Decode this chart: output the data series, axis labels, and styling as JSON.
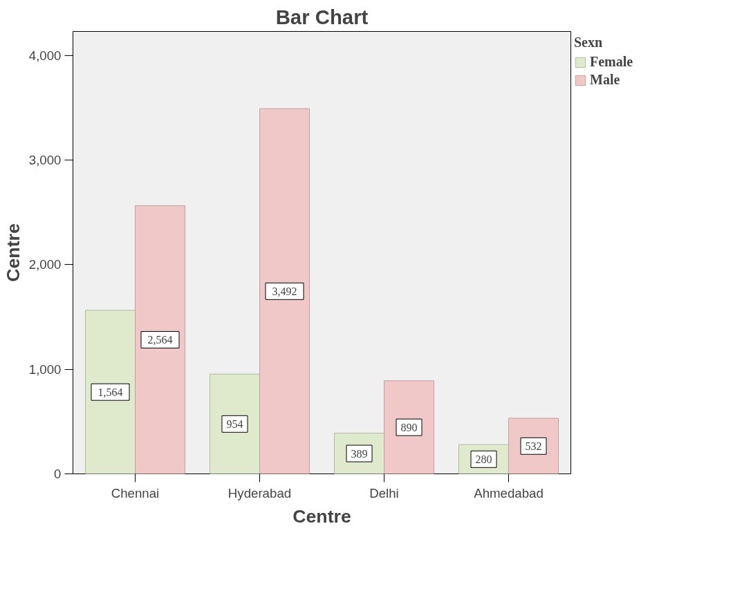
{
  "chart_data": {
    "type": "bar",
    "title": "Bar Chart",
    "xlabel": "Centre",
    "ylabel": "Centre",
    "legend_title": "Sexn",
    "categories": [
      "Chennai",
      "Hyderabad",
      "Delhi",
      "Ahmedabad"
    ],
    "series": [
      {
        "name": "Female",
        "color": "#dfeacc",
        "values": [
          1564,
          954,
          389,
          280
        ],
        "value_labels": [
          "1,564",
          "954",
          "389",
          "280"
        ]
      },
      {
        "name": "Male",
        "color": "#f0c8c8",
        "values": [
          2564,
          3492,
          890,
          532
        ],
        "value_labels": [
          "2,564",
          "3,492",
          "890",
          "532"
        ]
      }
    ],
    "ylim": [
      0,
      4230
    ],
    "yticks": [
      {
        "value": 0,
        "label": "0"
      },
      {
        "value": 1000,
        "label": "1,000"
      },
      {
        "value": 2000,
        "label": "2,000"
      },
      {
        "value": 3000,
        "label": "3,000"
      },
      {
        "value": 4000,
        "label": "4,000"
      }
    ],
    "grid": false,
    "legend": "top right"
  }
}
